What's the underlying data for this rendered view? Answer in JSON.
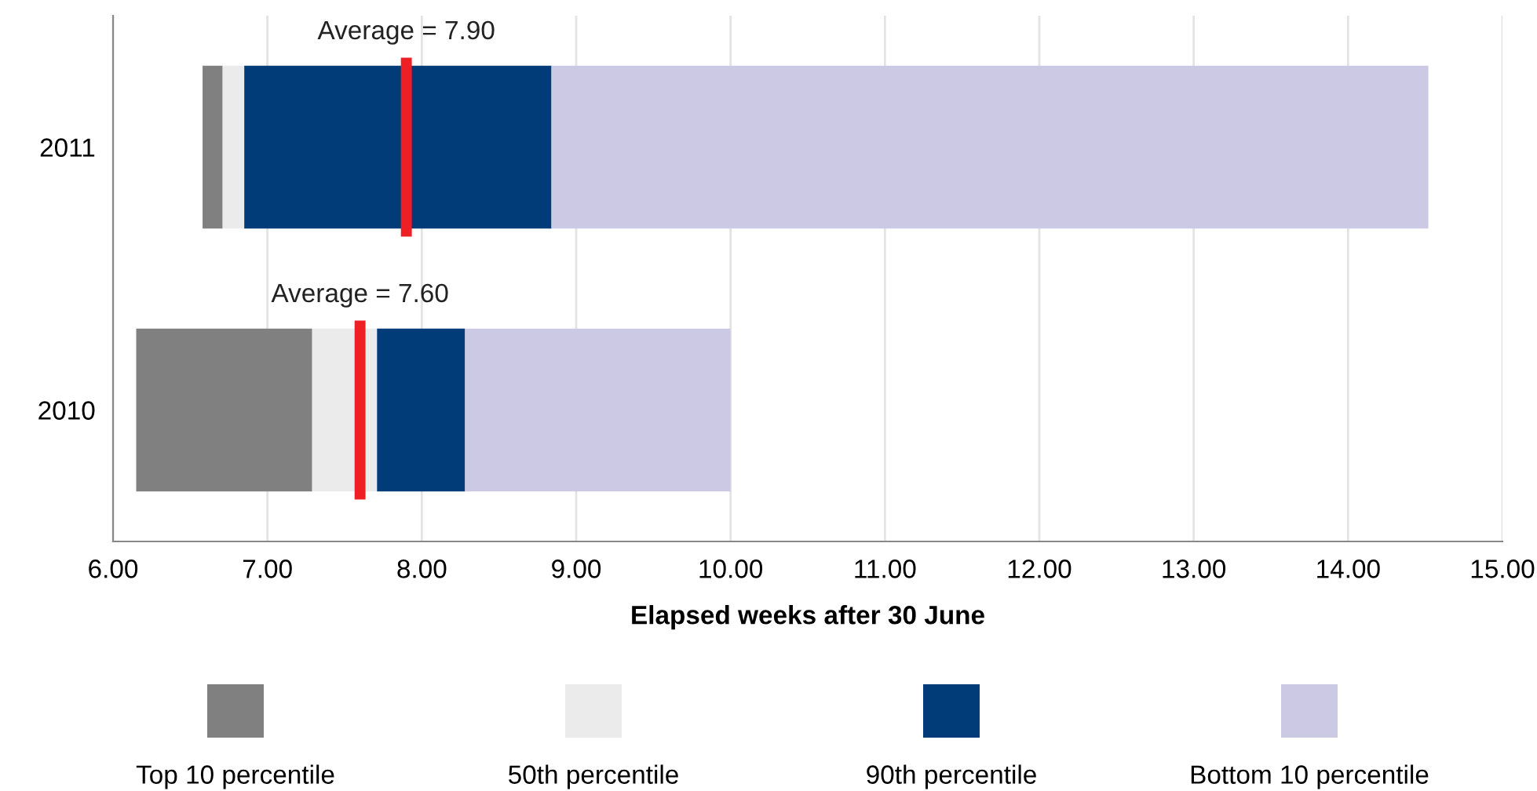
{
  "chart_data": {
    "type": "bar",
    "orientation": "horizontal",
    "categories": [
      "2011",
      "2010"
    ],
    "series": [
      {
        "name": "Top 10 percentile",
        "color": "#808080",
        "base": [
          6.58,
          6.15
        ],
        "values": [
          0.13,
          1.14
        ]
      },
      {
        "name": "50th percentile",
        "color": "#ebebeb",
        "base": [
          6.71,
          7.29
        ],
        "values": [
          0.14,
          0.42
        ]
      },
      {
        "name": "90th percentile",
        "color": "#023c78",
        "base": [
          6.85,
          7.71
        ],
        "values": [
          1.99,
          0.57
        ]
      },
      {
        "name": "Bottom 10 percentile",
        "color": "#cbc9e3",
        "base": [
          8.84,
          8.28
        ],
        "values": [
          5.68,
          1.72
        ]
      }
    ],
    "xlabel": "Elapsed weeks after 30 June",
    "xlim": [
      6,
      15
    ],
    "xticks": [
      {
        "value": 6,
        "label": "6.00"
      },
      {
        "value": 7,
        "label": "7.00"
      },
      {
        "value": 8,
        "label": "8.00"
      },
      {
        "value": 9,
        "label": "9.00"
      },
      {
        "value": 10,
        "label": "10.00"
      },
      {
        "value": 11,
        "label": "11.00"
      },
      {
        "value": 12,
        "label": "12.00"
      },
      {
        "value": 13,
        "label": "13.00"
      },
      {
        "value": 14,
        "label": "14.00"
      },
      {
        "value": 15,
        "label": "15.00"
      }
    ],
    "ref_lines": [
      {
        "axis": "x",
        "value": 7.9,
        "label": "Average = 7.90",
        "color": "#ee2024"
      },
      {
        "axis": "x",
        "value": 7.6,
        "label": "Average = 7.60",
        "color": "#ee2024"
      }
    ],
    "grid": "x",
    "legend": "bottom"
  }
}
